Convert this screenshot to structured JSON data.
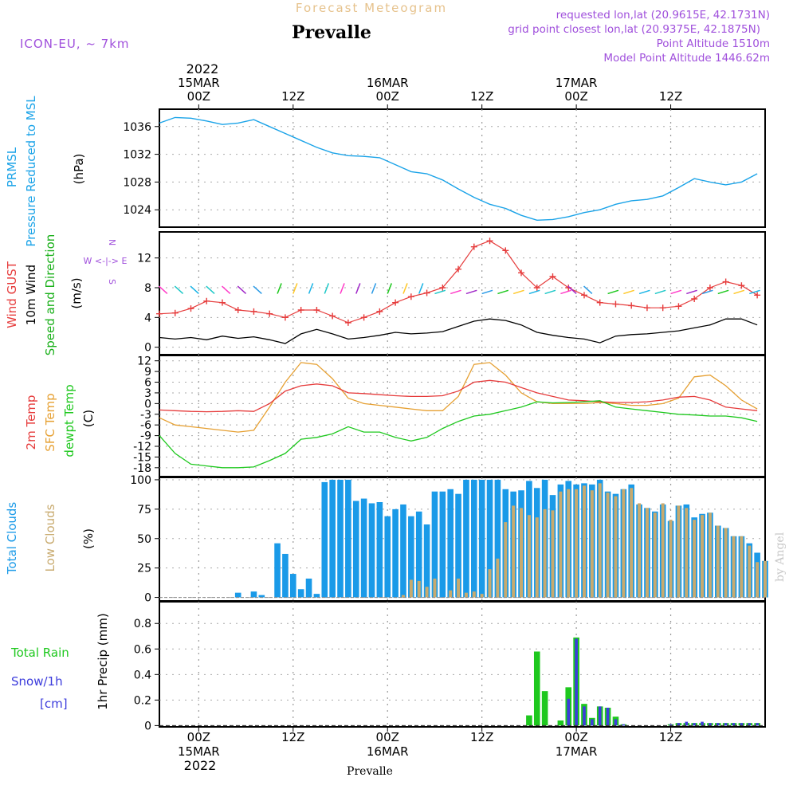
{
  "header": {
    "title": "Prevalle",
    "subtitle": "Forecast Meteogram",
    "model": "ICON-EU, ~ 7km",
    "requested": "requested lon,lat (20.9615E, 42.1731N)",
    "grid_point": "grid point closest lon,lat (20.9375E, 42.1875N)",
    "point_altitude": "Point Altitude 1510m",
    "model_altitude": "Model Point Altitude 1446.62m",
    "footer_station": "Prevalle",
    "watermark": "by Angel"
  },
  "time_axis": {
    "year": "2022",
    "tick_labels": [
      "00Z",
      "12Z",
      "00Z",
      "12Z",
      "00Z",
      "12Z"
    ],
    "date_labels": [
      "15MAR",
      "16MAR",
      "17MAR"
    ],
    "tick_hours": [
      0,
      12,
      24,
      36,
      48,
      60
    ],
    "date_hours": [
      0,
      24,
      48
    ],
    "hour_range": [
      -5,
      72
    ]
  },
  "colors": {
    "pressure": "#1aa3e8",
    "gust": "#e63c3c",
    "wind10m": "#000000",
    "wind_dir": "#1ab01a",
    "temp2m": "#e63c3c",
    "sfc_temp": "#e6a032",
    "dewpt": "#1ec81e",
    "total_clouds": "#1a9ae8",
    "low_clouds": "#c8aa6e",
    "rain": "#1ec81e",
    "snow": "#3c3cdc",
    "label_purple": "#a050dc"
  },
  "chart_data": [
    {
      "type": "line",
      "title": "PRMSL Pressure Reduced to MSL",
      "ylabel": "(hPa)",
      "ylabel_lines": [
        "PRMSL",
        "Pressure Reduced to MSL"
      ],
      "ylim": [
        1021.5,
        1038.5
      ],
      "yticks": [
        1024,
        1028,
        1032,
        1036
      ],
      "series": [
        {
          "name": "PRMSL",
          "x": [
            -5,
            -3,
            -1,
            1,
            3,
            5,
            7,
            9,
            11,
            13,
            15,
            17,
            19,
            21,
            23,
            25,
            27,
            29,
            31,
            33,
            35,
            37,
            39,
            41,
            43,
            45,
            47,
            49,
            51,
            53,
            55,
            57,
            59,
            61,
            63,
            65,
            67,
            69,
            71
          ],
          "values": [
            1036.5,
            1037.3,
            1037.2,
            1036.8,
            1036.3,
            1036.5,
            1037.0,
            1036.0,
            1035.0,
            1034.0,
            1033.0,
            1032.2,
            1031.8,
            1031.7,
            1031.5,
            1030.5,
            1029.5,
            1029.2,
            1028.3,
            1027.0,
            1025.8,
            1024.8,
            1024.2,
            1023.2,
            1022.5,
            1022.6,
            1023.0,
            1023.6,
            1024.0,
            1024.8,
            1025.3,
            1025.5,
            1026.0,
            1027.2,
            1028.5,
            1028.0,
            1027.6,
            1028.0,
            1029.2
          ]
        }
      ]
    },
    {
      "type": "line",
      "title": "Wind GUST / 10m Wind Speed and Direction",
      "ylabel": "(m/s)",
      "ylabel_lines": [
        "Wind GUST",
        "10m Wind",
        "Speed and Direction"
      ],
      "compass": [
        "N",
        "W <-|-> E",
        "S"
      ],
      "ylim": [
        -1,
        15.5
      ],
      "yticks": [
        0,
        4,
        8,
        12
      ],
      "series": [
        {
          "name": "Wind GUST",
          "x": [
            -5,
            -3,
            -1,
            1,
            3,
            5,
            7,
            9,
            11,
            13,
            15,
            17,
            19,
            21,
            23,
            25,
            27,
            29,
            31,
            33,
            35,
            37,
            39,
            41,
            43,
            45,
            47,
            49,
            51,
            53,
            55,
            57,
            59,
            61,
            63,
            65,
            67,
            69,
            71
          ],
          "values": [
            4.5,
            4.6,
            5.2,
            6.2,
            6.0,
            5.0,
            4.8,
            4.5,
            4.0,
            5.0,
            5.0,
            4.2,
            3.3,
            4.0,
            4.8,
            6.0,
            6.8,
            7.3,
            8.0,
            10.5,
            13.5,
            14.3,
            13.0,
            10.0,
            8.0,
            9.5,
            8.0,
            7.0,
            6.0,
            5.8,
            5.6,
            5.3,
            5.3,
            5.5,
            6.5,
            8.0,
            8.8,
            8.3,
            7.0
          ]
        },
        {
          "name": "10m Wind",
          "x": [
            -5,
            -3,
            -1,
            1,
            3,
            5,
            7,
            9,
            11,
            13,
            15,
            17,
            19,
            21,
            23,
            25,
            27,
            29,
            31,
            33,
            35,
            37,
            39,
            41,
            43,
            45,
            47,
            49,
            51,
            53,
            55,
            57,
            59,
            61,
            63,
            65,
            67,
            69,
            71
          ],
          "values": [
            1.3,
            1.1,
            1.3,
            1.0,
            1.5,
            1.2,
            1.4,
            1.0,
            0.5,
            1.8,
            2.4,
            1.8,
            1.1,
            1.3,
            1.6,
            2.0,
            1.8,
            1.9,
            2.1,
            2.8,
            3.5,
            3.8,
            3.6,
            3.0,
            2.0,
            1.6,
            1.3,
            1.1,
            0.6,
            1.5,
            1.7,
            1.8,
            2.0,
            2.2,
            2.6,
            3.0,
            3.8,
            3.8,
            3.0
          ]
        }
      ]
    },
    {
      "type": "line",
      "title": "2m Temp / SFC Temp / dewpt Temp",
      "ylabel": "(C)",
      "ylabel_lines": [
        "2m Temp",
        "SFC Temp",
        "dewpt Temp"
      ],
      "ylim": [
        -20.5,
        13.5
      ],
      "yticks": [
        -18,
        -15,
        -12,
        -9,
        -6,
        -3,
        0,
        3,
        6,
        9,
        12
      ],
      "series": [
        {
          "name": "2m Temp",
          "x": [
            -5,
            -3,
            -1,
            1,
            3,
            5,
            7,
            9,
            11,
            13,
            15,
            17,
            19,
            21,
            23,
            25,
            27,
            29,
            31,
            33,
            35,
            37,
            39,
            41,
            43,
            45,
            47,
            49,
            51,
            53,
            55,
            57,
            59,
            61,
            63,
            65,
            67,
            69,
            71
          ],
          "values": [
            -1.8,
            -2.0,
            -2.2,
            -2.3,
            -2.2,
            -2.0,
            -2.2,
            0,
            3.5,
            5.0,
            5.5,
            5.0,
            3.0,
            2.8,
            2.5,
            2.2,
            2.0,
            2.0,
            2.2,
            3.5,
            6.0,
            6.5,
            6.0,
            4.5,
            3.0,
            2.0,
            1.0,
            0.8,
            0.5,
            0.3,
            0.3,
            0.5,
            1.0,
            1.8,
            2.0,
            1.0,
            -1.0,
            -1.5,
            -2.0
          ]
        },
        {
          "name": "SFC Temp",
          "x": [
            -5,
            -3,
            -1,
            1,
            3,
            5,
            7,
            9,
            11,
            13,
            15,
            17,
            19,
            21,
            23,
            25,
            27,
            29,
            31,
            33,
            35,
            37,
            39,
            41,
            43,
            45,
            47,
            49,
            51,
            53,
            55,
            57,
            59,
            61,
            63,
            65,
            67,
            69,
            71
          ],
          "values": [
            -4.0,
            -6.0,
            -6.5,
            -7.0,
            -7.5,
            -8.0,
            -7.5,
            -1.0,
            6.0,
            11.5,
            11.0,
            7.0,
            1.5,
            0,
            -0.5,
            -1.0,
            -1.5,
            -2.0,
            -2.0,
            2.0,
            11.0,
            11.5,
            8.0,
            3.0,
            0.5,
            0,
            0,
            0,
            0.3,
            0,
            -0.5,
            -0.5,
            0,
            1.5,
            7.5,
            8.0,
            5.0,
            1.0,
            -1.5
          ]
        },
        {
          "name": "dewpt Temp",
          "x": [
            -5,
            -3,
            -1,
            1,
            3,
            5,
            7,
            9,
            11,
            13,
            15,
            17,
            19,
            21,
            23,
            25,
            27,
            29,
            31,
            33,
            35,
            37,
            39,
            41,
            43,
            45,
            47,
            49,
            51,
            53,
            55,
            57,
            59,
            61,
            63,
            65,
            67,
            69,
            71
          ],
          "values": [
            -9.0,
            -14.0,
            -17.0,
            -17.5,
            -18.0,
            -18.0,
            -17.8,
            -16.0,
            -14.0,
            -10.0,
            -9.5,
            -8.5,
            -6.5,
            -8.0,
            -8.0,
            -9.5,
            -10.5,
            -9.5,
            -7.0,
            -5.0,
            -3.5,
            -3.0,
            -2.0,
            -1.0,
            0.5,
            0.2,
            0.3,
            0.5,
            0.8,
            -1.0,
            -1.5,
            -2.0,
            -2.5,
            -3.0,
            -3.2,
            -3.5,
            -3.5,
            -4.0,
            -5.0
          ]
        }
      ]
    },
    {
      "type": "bar",
      "title": "Total Clouds / Low Clouds",
      "ylabel": "(%)",
      "ylabel_lines": [
        "Total Clouds",
        "Low Clouds"
      ],
      "ylim": [
        -3,
        102
      ],
      "yticks": [
        0,
        25,
        50,
        75,
        100
      ],
      "x": [
        -4,
        -3,
        -2,
        -1,
        0,
        1,
        2,
        3,
        4,
        5,
        6,
        7,
        8,
        9,
        10,
        11,
        12,
        13,
        14,
        15,
        16,
        17,
        18,
        19,
        20,
        21,
        22,
        23,
        24,
        25,
        26,
        27,
        28,
        29,
        30,
        31,
        32,
        33,
        34,
        35,
        36,
        37,
        38,
        39,
        40,
        41,
        42,
        43,
        44,
        45,
        46,
        47,
        48,
        49,
        50,
        51,
        52,
        53,
        54,
        55,
        56,
        57,
        58,
        59,
        60,
        61,
        62,
        63,
        64,
        65,
        66,
        67,
        68,
        69,
        70,
        71,
        72
      ],
      "series": [
        {
          "name": "Total Clouds",
          "values": [
            0,
            0,
            0,
            0,
            0,
            0,
            0,
            0,
            0,
            4,
            0,
            5,
            2,
            0,
            46,
            37,
            20,
            7,
            16,
            3,
            98,
            100,
            100,
            100,
            82,
            84,
            80,
            81,
            69,
            75,
            79,
            69,
            73,
            62,
            90,
            90,
            92,
            88,
            100,
            100,
            100,
            100,
            100,
            92,
            90,
            91,
            99,
            93,
            100,
            87,
            96,
            99,
            96,
            97,
            96,
            100,
            90,
            88,
            92,
            96,
            79,
            76,
            73,
            79,
            65,
            78,
            79,
            68,
            71,
            72,
            61,
            59,
            52,
            52,
            46,
            38,
            31
          ]
        },
        {
          "name": "Low Clouds",
          "values": [
            0,
            0,
            0,
            0,
            0,
            0,
            0,
            0,
            0,
            0,
            0,
            0,
            0,
            0,
            0,
            0,
            0,
            0,
            0,
            0,
            0,
            0,
            0,
            0,
            0,
            0,
            0,
            0,
            0,
            0,
            2,
            15,
            14,
            9,
            16,
            0,
            6,
            16,
            4,
            5,
            3,
            24,
            33,
            64,
            78,
            76,
            70,
            68,
            75,
            74,
            90,
            92,
            92,
            95,
            91,
            97,
            89,
            86,
            92,
            93,
            80,
            76,
            72,
            80,
            66,
            78,
            76,
            66,
            70,
            72,
            61,
            59,
            52,
            52,
            44,
            30,
            31
          ]
        }
      ]
    },
    {
      "type": "bar",
      "title": "Total Rain / Snow/1h",
      "ylabel": "1hr Precip (mm)",
      "ylabel_lines": [
        "Total  Rain",
        "Snow/1h",
        "[cm]"
      ],
      "ylim": [
        -0.01,
        0.97
      ],
      "yticks": [
        0,
        0.2,
        0.4,
        0.6,
        0.8
      ],
      "ytick_labels": [
        "0",
        "0.2",
        "0.4",
        "0.6",
        "0.8"
      ],
      "x": [
        42,
        43,
        44,
        46,
        47,
        48,
        49,
        50,
        51,
        52,
        53,
        54,
        60,
        61,
        62,
        63,
        64,
        65,
        66,
        67,
        68,
        69,
        70,
        71
      ],
      "series": [
        {
          "name": "Total Rain",
          "values": [
            0.08,
            0.58,
            0.27,
            0.04,
            0.3,
            0.69,
            0.17,
            0.06,
            0.15,
            0.14,
            0.07,
            0.01,
            0.01,
            0.02,
            0.02,
            0.02,
            0.02,
            0.02,
            0.02,
            0.02,
            0.02,
            0.02,
            0.02,
            0.02
          ]
        },
        {
          "name": "Snow/1h",
          "values": [
            0,
            0,
            0,
            0,
            0.21,
            0.68,
            0.15,
            0.05,
            0.15,
            0.14,
            0.05,
            0.01,
            0.01,
            0.02,
            0.03,
            0.02,
            0.03,
            0.02,
            0.02,
            0.02,
            0.02,
            0.02,
            0.02,
            0.02
          ]
        }
      ]
    }
  ]
}
